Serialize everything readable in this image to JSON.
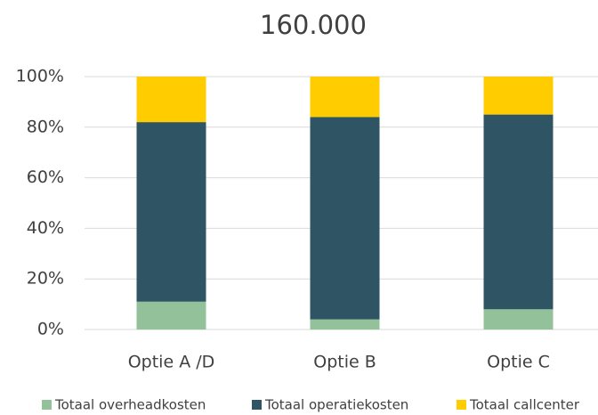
{
  "chart_data": {
    "type": "stacked_bar",
    "title": "160.000",
    "categories": [
      "Optie A /D",
      "Optie B",
      "Optie C"
    ],
    "series": [
      {
        "name": "Totaal overheadkosten",
        "color": "#93c29a",
        "values": [
          11,
          4,
          8
        ]
      },
      {
        "name": "Totaal operatiekosten",
        "color": "#2f5564",
        "values": [
          71,
          80,
          77
        ]
      },
      {
        "name": "Totaal callcenter",
        "color": "#ffcc00",
        "values": [
          18,
          16,
          15
        ]
      }
    ],
    "ylim": [
      0,
      100
    ],
    "yticks": [
      {
        "value": 0,
        "label": "0%"
      },
      {
        "value": 20,
        "label": "20%"
      },
      {
        "value": 40,
        "label": "40%"
      },
      {
        "value": 60,
        "label": "60%"
      },
      {
        "value": 80,
        "label": "80%"
      },
      {
        "value": 100,
        "label": "100%"
      }
    ],
    "grid": true,
    "legend": "bottom"
  }
}
